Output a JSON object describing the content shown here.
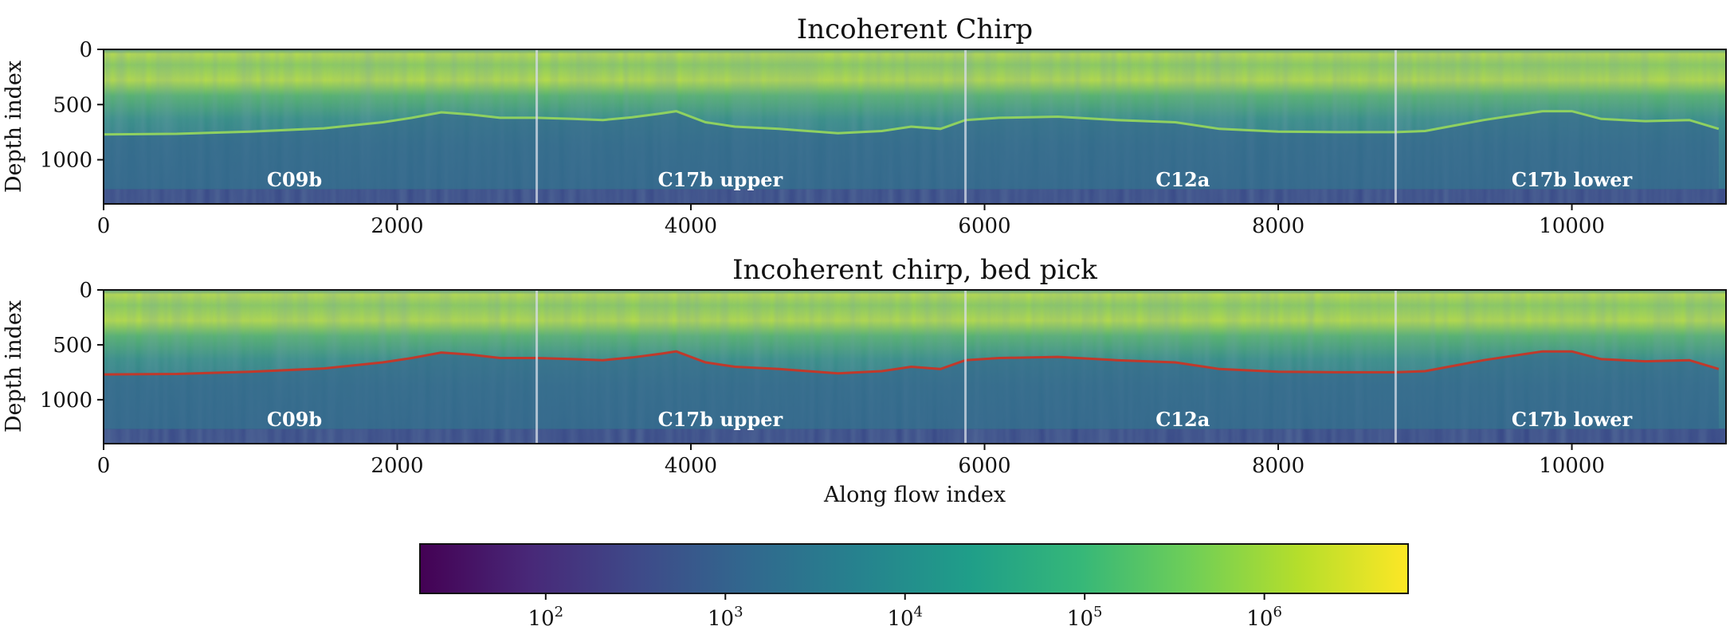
{
  "chart_data": [
    {
      "type": "heatmap",
      "title": "Incoherent Chirp",
      "ylabel": "Depth index",
      "xlabel": "",
      "xlim": [
        0,
        11050
      ],
      "ylim": [
        1400,
        0
      ],
      "xticks": [
        0,
        2000,
        4000,
        6000,
        8000,
        10000
      ],
      "yticks": [
        0,
        500,
        1000
      ],
      "segment_boundaries": [
        2950,
        5870,
        8800
      ],
      "segments": [
        {
          "label": "C09b",
          "x": 1300
        },
        {
          "label": "C17b upper",
          "x": 4200
        },
        {
          "label": "C12a",
          "x": 7350
        },
        {
          "label": "C17b lower",
          "x": 10000
        }
      ],
      "bed_line": {
        "x": [
          0,
          500,
          1000,
          1500,
          1900,
          2100,
          2300,
          2500,
          2700,
          2950,
          3200,
          3400,
          3600,
          3800,
          3900,
          4100,
          4300,
          4600,
          5000,
          5300,
          5500,
          5700,
          5870,
          6100,
          6500,
          6900,
          7300,
          7600,
          8000,
          8400,
          8800,
          9000,
          9200,
          9400,
          9600,
          9800,
          10000,
          10200,
          10500,
          10800,
          11000
        ],
        "y": [
          770,
          765,
          745,
          715,
          660,
          620,
          570,
          590,
          620,
          620,
          630,
          640,
          615,
          580,
          560,
          660,
          700,
          720,
          760,
          740,
          700,
          720,
          640,
          620,
          610,
          640,
          660,
          720,
          745,
          750,
          750,
          740,
          690,
          640,
          600,
          560,
          560,
          630,
          650,
          640,
          720
        ]
      },
      "colorscale": "viridis (log)"
    },
    {
      "type": "heatmap",
      "title": "Incoherent chirp, bed pick",
      "ylabel": "Depth index",
      "xlabel": "Along flow index",
      "xlim": [
        0,
        11050
      ],
      "ylim": [
        1400,
        0
      ],
      "xticks": [
        0,
        2000,
        4000,
        6000,
        8000,
        10000
      ],
      "yticks": [
        0,
        500,
        1000
      ],
      "segment_boundaries": [
        2950,
        5870,
        8800
      ],
      "segments": [
        {
          "label": "C09b",
          "x": 1300
        },
        {
          "label": "C17b upper",
          "x": 4200
        },
        {
          "label": "C12a",
          "x": 7350
        },
        {
          "label": "C17b lower",
          "x": 10000
        }
      ],
      "bed_pick": {
        "color": "#c0392b",
        "x": [
          0,
          500,
          1000,
          1500,
          1900,
          2100,
          2300,
          2500,
          2700,
          2950,
          3200,
          3400,
          3600,
          3800,
          3900,
          4100,
          4300,
          4600,
          5000,
          5300,
          5500,
          5700,
          5870,
          6100,
          6500,
          6900,
          7300,
          7600,
          8000,
          8400,
          8800,
          9000,
          9200,
          9400,
          9600,
          9800,
          10000,
          10200,
          10500,
          10800,
          11000
        ],
        "y": [
          770,
          765,
          745,
          715,
          660,
          620,
          570,
          590,
          620,
          620,
          630,
          640,
          615,
          580,
          560,
          660,
          700,
          720,
          760,
          740,
          700,
          720,
          640,
          620,
          610,
          640,
          660,
          720,
          745,
          750,
          750,
          740,
          690,
          640,
          600,
          560,
          560,
          630,
          650,
          640,
          720
        ]
      },
      "colorscale": "viridis (log)"
    }
  ],
  "colorbar": {
    "scale": "log",
    "range": [
      1.3,
      6.8
    ],
    "tick_exponents": [
      2,
      3,
      4,
      5,
      6
    ],
    "tick_labels": [
      "10",
      "10",
      "10",
      "10",
      "10"
    ],
    "tick_sups": [
      "2",
      "3",
      "4",
      "5",
      "6"
    ],
    "stops": [
      "#440154",
      "#482878",
      "#3e4a89",
      "#31688e",
      "#26828e",
      "#1f9e89",
      "#35b779",
      "#6ece58",
      "#b5de2b",
      "#fde725"
    ]
  },
  "colors": {
    "deep": "#3a5d88",
    "mid": "#3a8a8a",
    "bright": "#9fd250",
    "bottom_band": "#3b3f86",
    "boundary": "#d8dde8"
  }
}
